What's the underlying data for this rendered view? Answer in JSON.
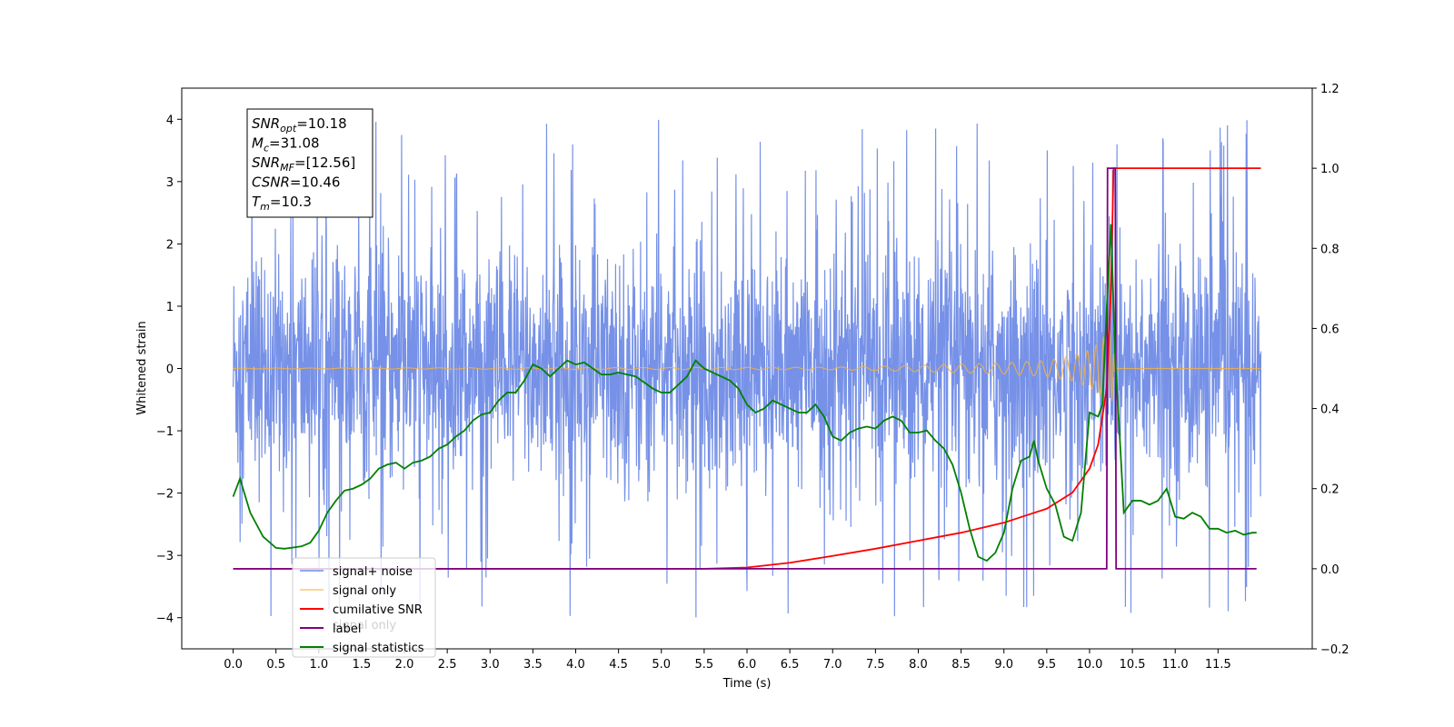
{
  "chart_data": {
    "type": "line",
    "xlabel": "Time (s)",
    "ylabel_left": "Whitened strain",
    "ylabel_right": "",
    "x_range": [
      -0.6,
      12.6
    ],
    "y_range_left": [
      -4.5,
      4.5
    ],
    "y_range_right": [
      -0.2,
      1.2
    ],
    "x_ticks": [
      "0.0",
      "0.5",
      "1.0",
      "1.5",
      "2.0",
      "2.5",
      "3.0",
      "3.5",
      "4.0",
      "4.5",
      "5.0",
      "5.5",
      "6.0",
      "6.5",
      "7.0",
      "7.5",
      "8.0",
      "8.5",
      "9.0",
      "9.5",
      "10.0",
      "10.5",
      "11.0",
      "11.5"
    ],
    "y_ticks_left": [
      "−4",
      "−3",
      "−2",
      "−1",
      "0",
      "1",
      "2",
      "3",
      "4"
    ],
    "y_ticks_right": [
      "−0.2",
      "0.0",
      "0.2",
      "0.4",
      "0.6",
      "0.8",
      "1.0",
      "1.2"
    ],
    "grid": false,
    "legend_position": "lower-left",
    "annotation": {
      "lines": [
        {
          "main": "SNR",
          "sub": "opt",
          "value": "=10.18"
        },
        {
          "main": "M",
          "sub": "c",
          "value": "=31.08"
        },
        {
          "main": "SNR",
          "sub": "MF",
          "value": "=[12.56]"
        },
        {
          "main": "CSNR",
          "sub": "",
          "value": "=10.46"
        },
        {
          "main": "T",
          "sub": "m",
          "value": "=10.3"
        }
      ]
    },
    "legend": [
      {
        "label": "signal+ noise",
        "color": "#6f8be6"
      },
      {
        "label": "signal only",
        "color": "#f5b041"
      },
      {
        "label": "cumilative SNR",
        "color": "#ff0000"
      },
      {
        "label": "label",
        "color": "#800080"
      },
      {
        "label": "signal statistics",
        "color": "#008000"
      }
    ],
    "legend_hidden_text": "signal only",
    "series": [
      {
        "name": "signal+ noise",
        "axis": "left",
        "color": "#6f8be6",
        "style": "noise band",
        "x_range": [
          0.0,
          12.0
        ],
        "typical_range": [
          -2.0,
          2.0
        ],
        "max": 4.1,
        "min": -4.1
      },
      {
        "name": "signal only",
        "axis": "left",
        "color": "#f5b041",
        "style": "chirp",
        "x": [
          0.0,
          7.0,
          8.0,
          9.0,
          9.5,
          9.8,
          10.0,
          10.1,
          10.2,
          10.25,
          10.3
        ],
        "amplitude": [
          0.005,
          0.02,
          0.05,
          0.09,
          0.13,
          0.2,
          0.3,
          0.4,
          0.55,
          0.65,
          0.0
        ]
      },
      {
        "name": "cumilative SNR",
        "axis": "right",
        "color": "#ff0000",
        "x": [
          0.0,
          5.5,
          6.0,
          6.5,
          7.0,
          7.5,
          8.0,
          8.5,
          9.0,
          9.5,
          9.8,
          10.0,
          10.1,
          10.2,
          10.25,
          10.28,
          10.3,
          11.5,
          11.6,
          12.0
        ],
        "y": [
          0.0,
          0.0,
          0.003,
          0.015,
          0.032,
          0.05,
          0.07,
          0.09,
          0.115,
          0.15,
          0.19,
          0.25,
          0.31,
          0.45,
          0.7,
          1.0,
          1.0,
          1.0,
          1.0,
          1.0
        ]
      },
      {
        "name": "label",
        "axis": "right",
        "color": "#800080",
        "x": [
          0.0,
          10.2,
          10.21,
          10.3,
          10.31,
          11.95
        ],
        "y": [
          0.0,
          0.0,
          1.0,
          1.0,
          0.0,
          0.0
        ]
      },
      {
        "name": "signal statistics",
        "axis": "right",
        "color": "#008000",
        "x": [
          0.0,
          0.08,
          0.2,
          0.35,
          0.5,
          0.6,
          0.7,
          0.8,
          0.9,
          1.0,
          1.1,
          1.2,
          1.3,
          1.4,
          1.5,
          1.6,
          1.7,
          1.8,
          1.9,
          2.0,
          2.1,
          2.2,
          2.3,
          2.4,
          2.5,
          2.6,
          2.7,
          2.8,
          2.9,
          3.0,
          3.1,
          3.2,
          3.3,
          3.4,
          3.5,
          3.6,
          3.7,
          3.8,
          3.9,
          4.0,
          4.1,
          4.2,
          4.3,
          4.4,
          4.5,
          4.6,
          4.7,
          4.8,
          4.9,
          5.0,
          5.1,
          5.2,
          5.3,
          5.4,
          5.5,
          5.6,
          5.7,
          5.8,
          5.9,
          6.0,
          6.1,
          6.2,
          6.3,
          6.4,
          6.5,
          6.6,
          6.7,
          6.8,
          6.9,
          7.0,
          7.1,
          7.2,
          7.3,
          7.4,
          7.5,
          7.6,
          7.7,
          7.8,
          7.9,
          8.0,
          8.1,
          8.2,
          8.3,
          8.4,
          8.5,
          8.6,
          8.7,
          8.8,
          8.9,
          9.0,
          9.1,
          9.2,
          9.3,
          9.35,
          9.4,
          9.5,
          9.6,
          9.7,
          9.8,
          9.9,
          10.0,
          10.1,
          10.15,
          10.2,
          10.25,
          10.3,
          10.35,
          10.4,
          10.5,
          10.6,
          10.7,
          10.8,
          10.9,
          11.0,
          11.1,
          11.2,
          11.3,
          11.4,
          11.5,
          11.6,
          11.7,
          11.8,
          11.9,
          11.95
        ],
        "y": [
          0.18,
          0.225,
          0.14,
          0.08,
          0.052,
          0.05,
          0.053,
          0.056,
          0.065,
          0.095,
          0.14,
          0.17,
          0.195,
          0.2,
          0.21,
          0.225,
          0.25,
          0.26,
          0.265,
          0.25,
          0.265,
          0.27,
          0.28,
          0.3,
          0.31,
          0.33,
          0.345,
          0.37,
          0.385,
          0.39,
          0.42,
          0.44,
          0.44,
          0.47,
          0.51,
          0.5,
          0.48,
          0.5,
          0.52,
          0.51,
          0.515,
          0.5,
          0.485,
          0.485,
          0.49,
          0.485,
          0.48,
          0.465,
          0.45,
          0.44,
          0.44,
          0.46,
          0.48,
          0.52,
          0.5,
          0.49,
          0.48,
          0.47,
          0.45,
          0.41,
          0.39,
          0.4,
          0.42,
          0.41,
          0.4,
          0.39,
          0.39,
          0.41,
          0.38,
          0.33,
          0.32,
          0.34,
          0.35,
          0.355,
          0.35,
          0.37,
          0.38,
          0.37,
          0.34,
          0.34,
          0.345,
          0.32,
          0.3,
          0.26,
          0.19,
          0.1,
          0.03,
          0.02,
          0.04,
          0.09,
          0.2,
          0.27,
          0.28,
          0.32,
          0.27,
          0.2,
          0.16,
          0.08,
          0.07,
          0.14,
          0.39,
          0.38,
          0.41,
          0.65,
          0.86,
          0.52,
          0.34,
          0.14,
          0.17,
          0.17,
          0.16,
          0.17,
          0.2,
          0.13,
          0.125,
          0.14,
          0.13,
          0.1,
          0.1,
          0.09,
          0.095,
          0.085,
          0.09,
          0.09
        ]
      }
    ]
  }
}
